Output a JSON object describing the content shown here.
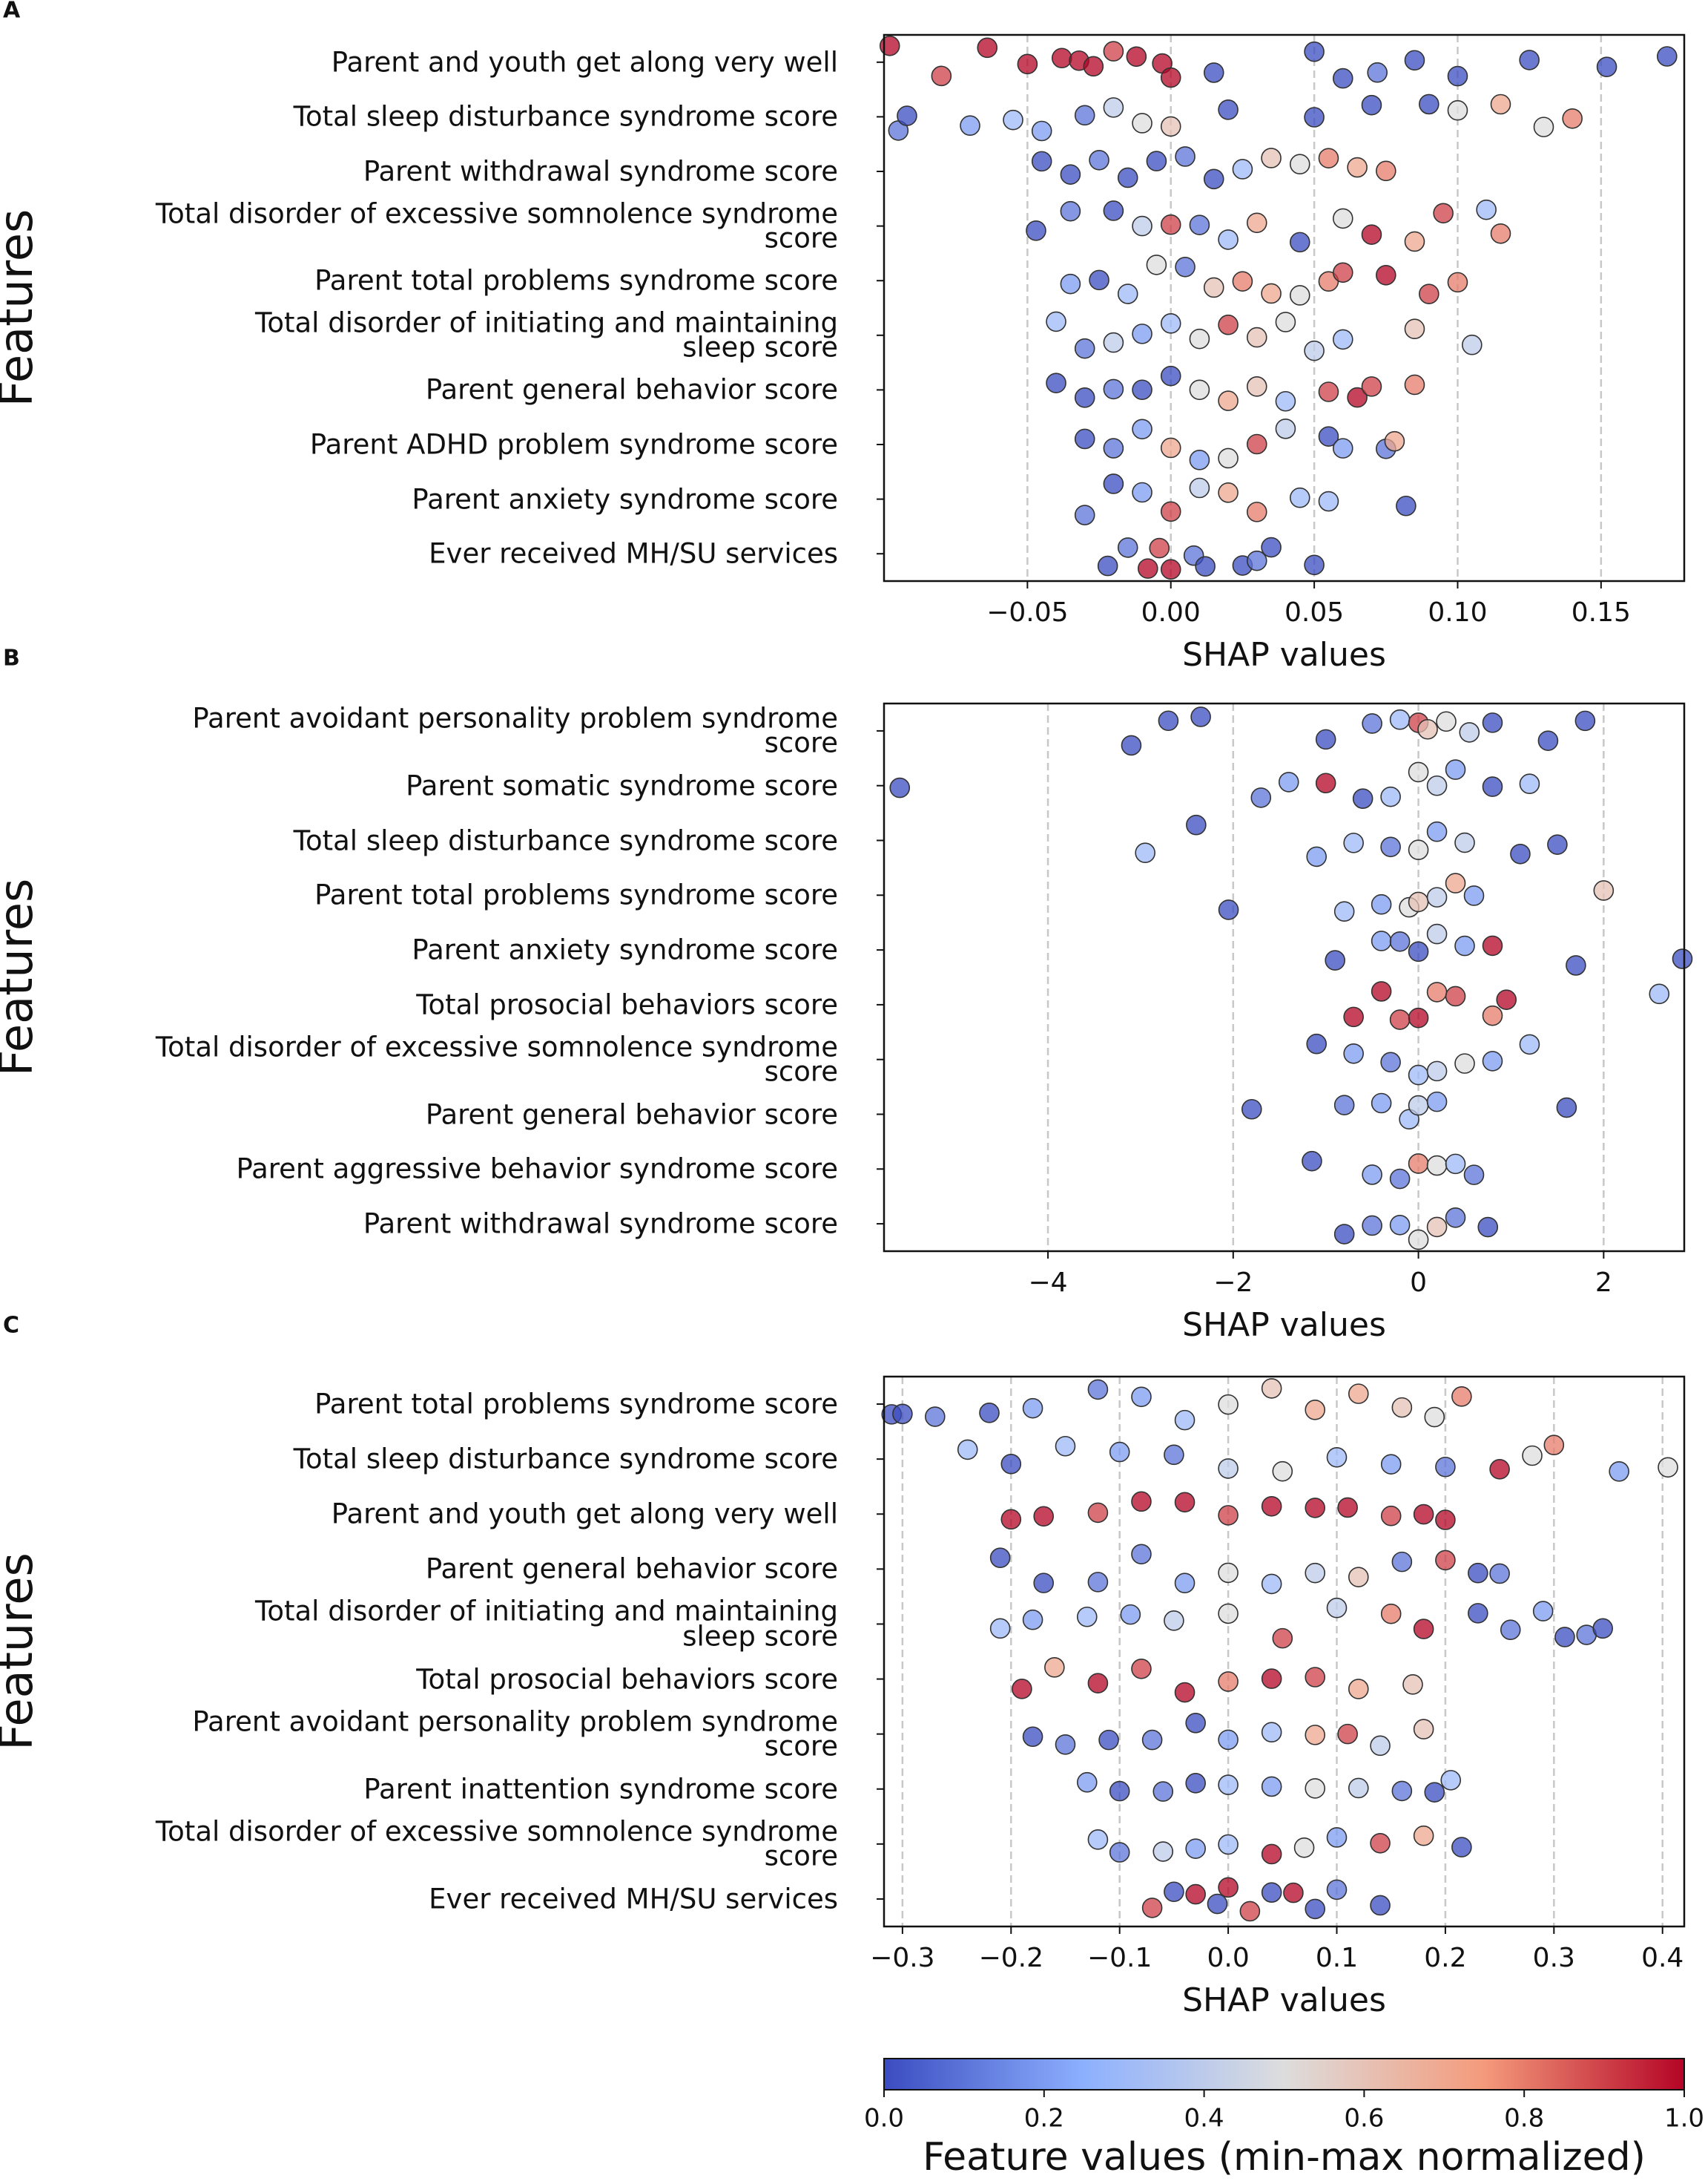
{
  "chart_data": [
    {
      "type": "strip",
      "panel_label": "A",
      "x_label": "SHAP values",
      "y_label": "Features",
      "xlim": [
        -0.1,
        0.179
      ],
      "grid": true,
      "xticks": [
        {
          "value": -0.05,
          "label": "−0.05"
        },
        {
          "value": 0,
          "label": "0.00"
        },
        0.05,
        {
          "value": 0.1,
          "label": "0.10"
        },
        0.15
      ],
      "series": [
        {
          "name": "Parent and youth get along very well",
          "values": [
            -0.098,
            -0.08,
            -0.064,
            -0.05,
            -0.038,
            -0.032,
            -0.027,
            -0.02,
            -0.012,
            -0.003,
            0,
            0.015,
            0.05,
            0.06,
            0.072,
            0.085,
            0.1,
            0.125,
            0.152,
            0.173
          ],
          "feature_values": [
            1,
            0.9,
            1,
            1,
            1,
            1,
            1,
            0.9,
            1,
            1,
            1,
            0,
            0,
            0,
            0.1,
            0,
            0,
            0,
            0,
            0
          ]
        },
        {
          "name": "Total sleep disturbance syndrome score",
          "values": [
            -0.095,
            -0.092,
            -0.07,
            -0.055,
            -0.045,
            -0.03,
            -0.02,
            -0.01,
            0,
            0.02,
            0.05,
            0.07,
            0.09,
            0.1,
            0.115,
            0.13,
            0.14
          ],
          "feature_values": [
            0.1,
            0,
            0.2,
            0.3,
            0.2,
            0.1,
            0.4,
            0.5,
            0.6,
            0,
            0,
            0,
            0,
            0.5,
            0.7,
            0.5,
            0.8
          ]
        },
        {
          "name": "Parent withdrawal syndrome score",
          "values": [
            -0.045,
            -0.035,
            -0.025,
            -0.015,
            -0.005,
            0.005,
            0.015,
            0.025,
            0.035,
            0.045,
            0.055,
            0.065,
            0.075
          ],
          "feature_values": [
            0,
            0,
            0.1,
            0,
            0,
            0.1,
            0,
            0.3,
            0.6,
            0.5,
            0.8,
            0.7,
            0.8
          ]
        },
        {
          "name": "Total disorder of excessive somnolence syndrome\nscore",
          "values": [
            -0.047,
            -0.035,
            -0.02,
            -0.01,
            0,
            0.01,
            0.02,
            0.03,
            0.045,
            0.06,
            0.07,
            0.085,
            0.095,
            0.11,
            0.115
          ],
          "feature_values": [
            0,
            0.1,
            0,
            0.4,
            0.9,
            0.1,
            0.3,
            0.7,
            0,
            0.5,
            1,
            0.7,
            0.9,
            0.3,
            0.8
          ]
        },
        {
          "name": "Parent total problems syndrome score",
          "values": [
            -0.035,
            -0.025,
            -0.015,
            -0.005,
            0.005,
            0.015,
            0.025,
            0.035,
            0.045,
            0.055,
            0.06,
            0.075,
            0.09,
            0.1
          ],
          "feature_values": [
            0.2,
            0,
            0.3,
            0.5,
            0.1,
            0.6,
            0.8,
            0.7,
            0.5,
            0.8,
            0.9,
            1,
            0.9,
            0.8
          ]
        },
        {
          "name": "Total disorder of initiating and maintaining\nsleep score",
          "values": [
            -0.04,
            -0.03,
            -0.02,
            -0.01,
            0,
            0.01,
            0.02,
            0.03,
            0.04,
            0.05,
            0.06,
            0.085,
            0.105
          ],
          "feature_values": [
            0.3,
            0.1,
            0.4,
            0.2,
            0.3,
            0.5,
            0.9,
            0.6,
            0.5,
            0.4,
            0.3,
            0.6,
            0.4
          ]
        },
        {
          "name": "Parent general behavior score",
          "values": [
            -0.04,
            -0.03,
            -0.02,
            -0.01,
            0,
            0.01,
            0.02,
            0.03,
            0.04,
            0.055,
            0.065,
            0.07,
            0.085
          ],
          "feature_values": [
            0,
            0,
            0.1,
            0,
            0,
            0.5,
            0.7,
            0.6,
            0.3,
            0.9,
            1,
            0.9,
            0.8
          ]
        },
        {
          "name": "Parent ADHD problem syndrome score",
          "values": [
            -0.03,
            -0.02,
            -0.01,
            0,
            0.01,
            0.02,
            0.03,
            0.04,
            0.055,
            0.06,
            0.075,
            0.078
          ],
          "feature_values": [
            0,
            0.1,
            0.2,
            0.7,
            0.2,
            0.5,
            0.9,
            0.4,
            0,
            0.2,
            0.1,
            0.7
          ]
        },
        {
          "name": "Parent anxiety syndrome score",
          "values": [
            -0.03,
            -0.02,
            -0.01,
            0,
            0.01,
            0.02,
            0.03,
            0.045,
            0.055,
            0.082
          ],
          "feature_values": [
            0.1,
            0,
            0.2,
            0.9,
            0.4,
            0.7,
            0.8,
            0.3,
            0.3,
            0
          ]
        },
        {
          "name": "Ever received MH/SU services",
          "values": [
            -0.022,
            -0.015,
            -0.008,
            -0.004,
            0,
            0.008,
            0.012,
            0.025,
            0.03,
            0.035,
            0.05
          ],
          "feature_values": [
            0,
            0.1,
            1,
            0.9,
            1,
            0.1,
            0,
            0,
            0.1,
            0,
            0
          ]
        }
      ]
    },
    {
      "type": "strip",
      "panel_label": "B",
      "x_label": "SHAP values",
      "y_label": "Features",
      "xlim": [
        -5.77,
        2.87
      ],
      "grid": true,
      "xticks": [
        {
          "value": -4,
          "label": "−4"
        },
        {
          "value": -2,
          "label": "−2"
        },
        0,
        2
      ],
      "series": [
        {
          "name": "Parent avoidant personality problem syndrome\nscore",
          "values": [
            -3.1,
            -2.7,
            -2.35,
            -1,
            -0.5,
            -0.2,
            0,
            0.1,
            0.3,
            0.55,
            0.8,
            1.4,
            1.8
          ],
          "feature_values": [
            0,
            0,
            0,
            0,
            0.1,
            0.3,
            0.9,
            0.6,
            0.5,
            0.4,
            0,
            0,
            0
          ]
        },
        {
          "name": "Parent somatic syndrome score",
          "values": [
            -5.6,
            -1.7,
            -1.4,
            -1,
            -0.6,
            -0.3,
            0,
            0.2,
            0.4,
            0.8,
            1.2
          ],
          "feature_values": [
            0,
            0.1,
            0.2,
            1,
            0,
            0.3,
            0.5,
            0.4,
            0.2,
            0,
            0.3
          ]
        },
        {
          "name": "Total sleep disturbance syndrome score",
          "values": [
            -2.95,
            -2.4,
            -1.1,
            -0.7,
            -0.3,
            0,
            0.2,
            0.5,
            1.1,
            1.5
          ],
          "feature_values": [
            0.3,
            0,
            0.2,
            0.3,
            0.1,
            0.5,
            0.2,
            0.4,
            0,
            0
          ]
        },
        {
          "name": "Parent total problems syndrome score",
          "values": [
            -2.05,
            -0.8,
            -0.4,
            -0.1,
            0,
            0.2,
            0.4,
            0.6,
            2.0
          ],
          "feature_values": [
            0,
            0.3,
            0.2,
            0.5,
            0.6,
            0.4,
            0.7,
            0.2,
            0.6
          ]
        },
        {
          "name": "Parent anxiety syndrome score",
          "values": [
            -0.9,
            -0.4,
            -0.2,
            0,
            0.2,
            0.5,
            0.8,
            1.7,
            2.85
          ],
          "feature_values": [
            0,
            0.2,
            0.1,
            0,
            0.4,
            0.2,
            1,
            0,
            0
          ]
        },
        {
          "name": "Total prosocial behaviors score",
          "values": [
            -0.7,
            -0.4,
            -0.2,
            0,
            0.2,
            0.4,
            0.8,
            0.95,
            2.6
          ],
          "feature_values": [
            1,
            1,
            0.9,
            1,
            0.8,
            0.9,
            0.8,
            1,
            0.3
          ]
        },
        {
          "name": "Total disorder of excessive somnolence syndrome\nscore",
          "values": [
            -1.1,
            -0.7,
            -0.3,
            0,
            0.2,
            0.5,
            0.8,
            1.2
          ],
          "feature_values": [
            0,
            0.2,
            0.1,
            0.3,
            0.4,
            0.5,
            0.2,
            0.3
          ]
        },
        {
          "name": "Parent general behavior score",
          "values": [
            -1.8,
            -0.8,
            -0.4,
            -0.1,
            0,
            0.2,
            1.6
          ],
          "feature_values": [
            0,
            0.1,
            0.2,
            0.3,
            0.4,
            0.2,
            0
          ]
        },
        {
          "name": "Parent aggressive behavior syndrome score",
          "values": [
            -1.15,
            -0.5,
            -0.2,
            0,
            0.2,
            0.4,
            0.6
          ],
          "feature_values": [
            0,
            0.2,
            0.1,
            0.8,
            0.5,
            0.3,
            0.1
          ]
        },
        {
          "name": "Parent withdrawal syndrome score",
          "values": [
            -0.8,
            -0.5,
            -0.2,
            0,
            0.2,
            0.4,
            0.75
          ],
          "feature_values": [
            0,
            0.1,
            0.2,
            0.5,
            0.6,
            0.1,
            0
          ]
        }
      ]
    },
    {
      "type": "strip",
      "panel_label": "C",
      "x_label": "SHAP values",
      "y_label": "Features",
      "xlim": [
        -0.317,
        0.42
      ],
      "grid": true,
      "xticks": [
        {
          "value": -0.3,
          "label": "−0.3"
        },
        {
          "value": -0.2,
          "label": "−0.2"
        },
        {
          "value": -0.1,
          "label": "−0.1"
        },
        {
          "value": 0,
          "label": "0.0"
        },
        0.1,
        0.2,
        0.3,
        0.4
      ],
      "series": [
        {
          "name": "Parent total problems syndrome score",
          "values": [
            -0.31,
            -0.3,
            -0.27,
            -0.22,
            -0.18,
            -0.12,
            -0.08,
            -0.04,
            0,
            0.04,
            0.08,
            0.12,
            0.16,
            0.19,
            0.215
          ],
          "feature_values": [
            0,
            0,
            0.1,
            0,
            0.2,
            0.1,
            0.2,
            0.3,
            0.5,
            0.6,
            0.7,
            0.7,
            0.6,
            0.5,
            0.8
          ]
        },
        {
          "name": "Total sleep disturbance syndrome score",
          "values": [
            -0.24,
            -0.2,
            -0.15,
            -0.1,
            -0.05,
            0,
            0.05,
            0.1,
            0.15,
            0.2,
            0.25,
            0.28,
            0.3,
            0.36,
            0.405
          ],
          "feature_values": [
            0.3,
            0,
            0.3,
            0.2,
            0.1,
            0.4,
            0.5,
            0.3,
            0.2,
            0.1,
            1,
            0.5,
            0.8,
            0.2,
            0.5
          ]
        },
        {
          "name": "Parent and youth get along very well",
          "values": [
            -0.2,
            -0.17,
            -0.12,
            -0.08,
            -0.04,
            0,
            0.04,
            0.08,
            0.11,
            0.15,
            0.18,
            0.2
          ],
          "feature_values": [
            1,
            1,
            0.9,
            1,
            1,
            0.9,
            1,
            1,
            1,
            0.9,
            1,
            1
          ]
        },
        {
          "name": "Parent general behavior score",
          "values": [
            -0.21,
            -0.17,
            -0.12,
            -0.08,
            -0.04,
            0,
            0.04,
            0.08,
            0.12,
            0.16,
            0.2,
            0.23,
            0.25
          ],
          "feature_values": [
            0,
            0,
            0.1,
            0.1,
            0.2,
            0.5,
            0.3,
            0.4,
            0.6,
            0.1,
            0.9,
            0,
            0.1
          ]
        },
        {
          "name": "Total disorder of initiating and maintaining\nsleep score",
          "values": [
            -0.21,
            -0.18,
            -0.13,
            -0.09,
            -0.05,
            0,
            0.05,
            0.1,
            0.15,
            0.18,
            0.23,
            0.26,
            0.29,
            0.31,
            0.33,
            0.345
          ],
          "feature_values": [
            0.3,
            0.2,
            0.3,
            0.2,
            0.4,
            0.5,
            0.9,
            0.4,
            0.8,
            1,
            0,
            0.1,
            0.2,
            0,
            0.1,
            0
          ]
        },
        {
          "name": "Total prosocial behaviors score",
          "values": [
            -0.19,
            -0.16,
            -0.12,
            -0.08,
            -0.04,
            0,
            0.04,
            0.08,
            0.12,
            0.17
          ],
          "feature_values": [
            1,
            0.7,
            1,
            0.9,
            1,
            0.8,
            1,
            0.9,
            0.7,
            0.6
          ]
        },
        {
          "name": "Parent avoidant personality problem syndrome\nscore",
          "values": [
            -0.18,
            -0.15,
            -0.11,
            -0.07,
            -0.03,
            0,
            0.04,
            0.08,
            0.11,
            0.14,
            0.18
          ],
          "feature_values": [
            0,
            0.1,
            0,
            0.1,
            0,
            0.2,
            0.3,
            0.7,
            0.9,
            0.4,
            0.6
          ]
        },
        {
          "name": "Parent inattention syndrome score",
          "values": [
            -0.13,
            -0.1,
            -0.06,
            -0.03,
            0,
            0.04,
            0.08,
            0.12,
            0.16,
            0.19,
            0.205
          ],
          "feature_values": [
            0.2,
            0,
            0.1,
            0,
            0.3,
            0.2,
            0.5,
            0.4,
            0.1,
            0,
            0.3
          ]
        },
        {
          "name": "Total disorder of excessive somnolence syndrome\nscore",
          "values": [
            -0.12,
            -0.1,
            -0.06,
            -0.03,
            0,
            0.04,
            0.07,
            0.1,
            0.14,
            0.18,
            0.215
          ],
          "feature_values": [
            0.3,
            0.1,
            0.4,
            0.2,
            0.3,
            1,
            0.5,
            0.2,
            0.9,
            0.7,
            0
          ]
        },
        {
          "name": "Ever received MH/SU services",
          "values": [
            -0.07,
            -0.05,
            -0.03,
            -0.01,
            0,
            0.02,
            0.04,
            0.06,
            0.08,
            0.1,
            0.14
          ],
          "feature_values": [
            0.9,
            0,
            1,
            0,
            1,
            0.9,
            0,
            1,
            0,
            0.1,
            0
          ]
        }
      ]
    }
  ],
  "colorbar": {
    "label": "Feature values (min-max normalized)",
    "lim": [
      0,
      1
    ],
    "ticks": [
      {
        "value": 0,
        "label": "0.0"
      },
      0.2,
      0.4,
      0.6,
      0.8,
      {
        "value": 1,
        "label": "1.0"
      }
    ],
    "colormap": [
      "#3b4cc0",
      "#8db0fe",
      "#dddddd",
      "#f49a7b",
      "#b40426"
    ]
  }
}
